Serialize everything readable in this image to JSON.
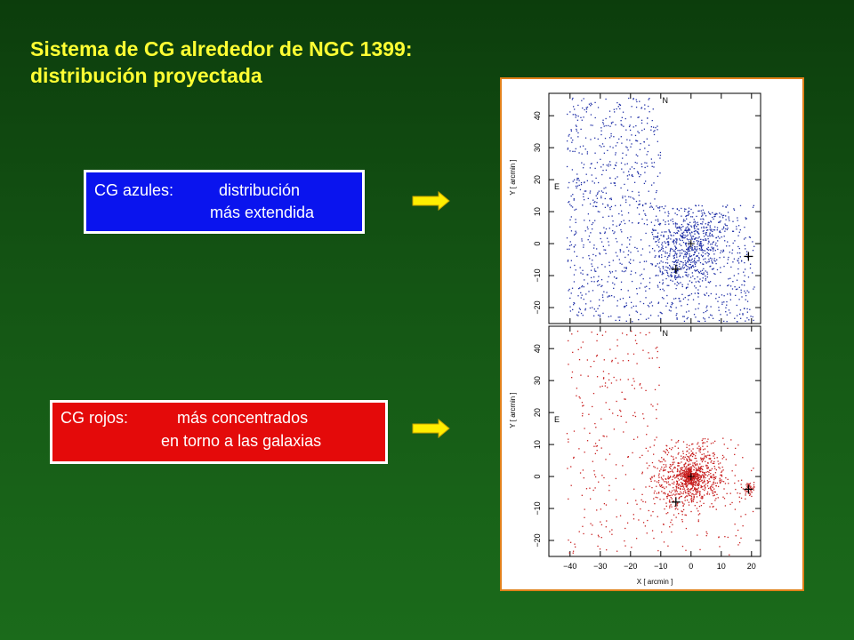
{
  "title": {
    "line1": "Sistema de CG alrededor de NGC 1399:",
    "line2": "distribución proyectada"
  },
  "blue_box": {
    "label": "CG azules:",
    "line1_text": "distribución",
    "line2_text": "más extendida",
    "color": "#0a14ee"
  },
  "red_box": {
    "label": "CG rojos:",
    "line1_text": "más concentrados",
    "line2_text": "en torno a las galaxias",
    "color": "#e40a0a"
  },
  "arrow_color": "#ffee00",
  "chart_data": [
    {
      "type": "scatter",
      "name": "blue",
      "series_color": "#1f2fa6",
      "north_label": "N",
      "east_label": "E",
      "ylabel": "Y [ arcmin ]",
      "xlabel": "",
      "xlim": [
        -47,
        23
      ],
      "ylim": [
        -25,
        47
      ],
      "xticks": [
        -40,
        -30,
        -20,
        -10,
        0,
        10,
        20
      ],
      "yticks": [
        -20,
        -10,
        0,
        10,
        20,
        30,
        40
      ],
      "galaxy_markers": [
        {
          "x": -5,
          "y": -8
        },
        {
          "x": 19,
          "y": -4
        }
      ],
      "center": {
        "x": 0,
        "y": 0
      },
      "distribution": "extended: uniform field over the observed region plus a broad concentration around NGC 1399"
    },
    {
      "type": "scatter",
      "name": "red",
      "series_color": "#c81e1e",
      "north_label": "N",
      "east_label": "E",
      "ylabel": "Y [ arcmin ]",
      "xlabel": "X [ arcmin ]",
      "xlim": [
        -47,
        23
      ],
      "ylim": [
        -25,
        47
      ],
      "xticks": [
        -40,
        -30,
        -20,
        -10,
        0,
        10,
        20
      ],
      "yticks": [
        -20,
        -10,
        0,
        10,
        20,
        30,
        40
      ],
      "galaxy_markers": [
        {
          "x": -5,
          "y": -8
        },
        {
          "x": 19,
          "y": -4
        }
      ],
      "center": {
        "x": 0,
        "y": 0
      },
      "distribution": "concentrated: dense clump around NGC 1399 and around the neighbouring galaxies, sparse field"
    }
  ]
}
